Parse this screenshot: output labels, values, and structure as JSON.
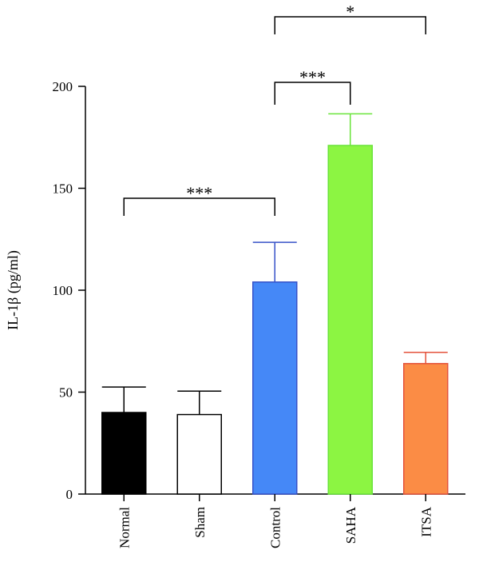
{
  "chart_data": {
    "type": "bar",
    "ylabel": "IL-1β (pg/ml)",
    "categories": [
      "Normal",
      "Sham",
      "Control",
      "SAHA",
      "ITSA"
    ],
    "values": [
      40,
      39,
      104,
      171,
      64
    ],
    "errors": [
      12.5,
      11.5,
      19.5,
      15.5,
      5.5
    ],
    "colors": {
      "fill": [
        "#000000",
        "#ffffff",
        "#4588f7",
        "#8cf542",
        "#fb8c45"
      ],
      "stroke": [
        "#000000",
        "#000000",
        "#3652c8",
        "#6ae43b",
        "#e4533c"
      ]
    },
    "ylim": [
      0,
      200
    ],
    "yticks": [
      0,
      50,
      100,
      150,
      200
    ],
    "significance": [
      {
        "from": 0,
        "to": 2,
        "label": "***",
        "level": 0
      },
      {
        "from": 2,
        "to": 3,
        "label": "***",
        "level": 1
      },
      {
        "from": 2,
        "to": 4,
        "label": "*",
        "level": 2
      }
    ]
  }
}
